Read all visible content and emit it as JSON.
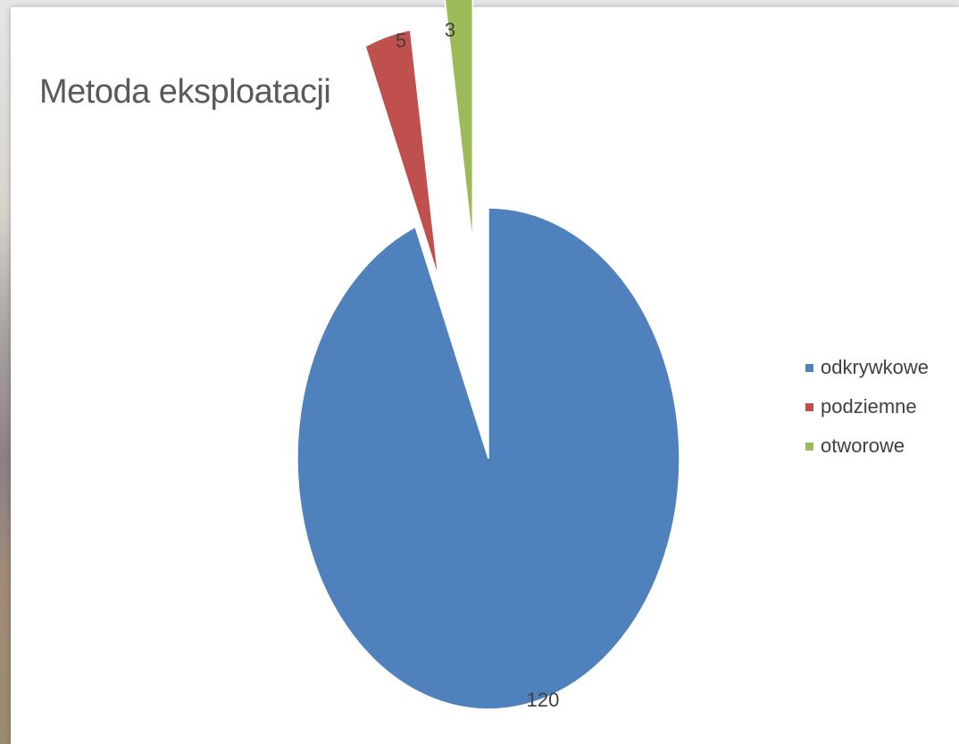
{
  "chart_data": {
    "type": "pie",
    "title": "Metoda eksploatacji",
    "categories": [
      "odkrywkowe",
      "podziemne",
      "otworowe"
    ],
    "values": [
      120,
      5,
      3
    ],
    "colors": [
      "#4f81bd",
      "#c0504d",
      "#9bbb59"
    ],
    "exploded": true,
    "legend_position": "right",
    "data_labels": [
      "120",
      "5",
      "3"
    ]
  }
}
